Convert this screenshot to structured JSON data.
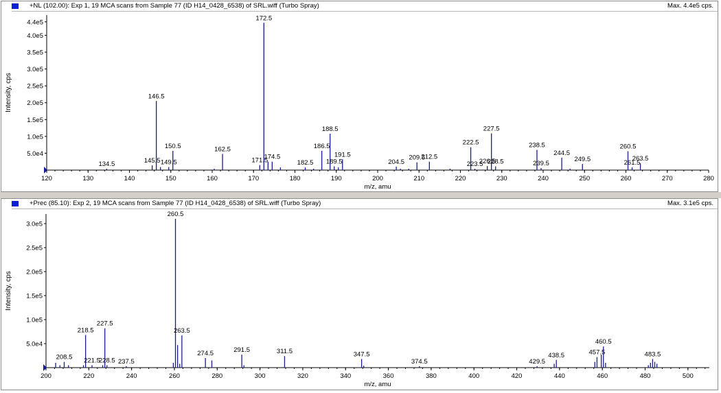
{
  "colors": {
    "peak": "#1c1c8c",
    "marker": "#0a1fd0",
    "axis": "#000000"
  },
  "chart_data": [
    {
      "type": "bar",
      "title": "+NL (102.00): Exp 1, 19 MCA scans from Sample 77 (ID H14_0428_6538) of SRL.wiff (Turbo Spray)",
      "max_label": "Max. 4.4e5 cps.",
      "xlabel": "m/z, amu",
      "ylabel": "Intensity, cps",
      "xlim": [
        120,
        280
      ],
      "ylim": [
        0,
        460000
      ],
      "xticks": [
        "120",
        "130",
        "140",
        "150",
        "160",
        "170",
        "180",
        "190",
        "200",
        "210",
        "220",
        "230",
        "240",
        "250",
        "260",
        "270",
        "280"
      ],
      "yticks": [
        {
          "value": 50000,
          "label": "5.0e4"
        },
        {
          "value": 100000,
          "label": "1.0e5"
        },
        {
          "value": 150000,
          "label": "1.5e5"
        },
        {
          "value": 200000,
          "label": "2.0e5"
        },
        {
          "value": 250000,
          "label": "2.5e5"
        },
        {
          "value": 300000,
          "label": "3.0e5"
        },
        {
          "value": 350000,
          "label": "3.5e5"
        },
        {
          "value": 400000,
          "label": "4.0e5"
        },
        {
          "value": 440000,
          "label": "4.4e5"
        }
      ],
      "peaks": [
        {
          "mz": 134.5,
          "intensity": 3000,
          "label": "134.5"
        },
        {
          "mz": 145.5,
          "intensity": 14000,
          "label": "145.5"
        },
        {
          "mz": 146.5,
          "intensity": 205000,
          "label": "146.5"
        },
        {
          "mz": 147.5,
          "intensity": 9000
        },
        {
          "mz": 149.5,
          "intensity": 9000,
          "label": "149.5"
        },
        {
          "mz": 150.5,
          "intensity": 57000,
          "label": "150.5"
        },
        {
          "mz": 160.5,
          "intensity": 3000
        },
        {
          "mz": 162.5,
          "intensity": 48000,
          "label": "162.5"
        },
        {
          "mz": 171.5,
          "intensity": 15000,
          "label": "171.5"
        },
        {
          "mz": 172.5,
          "intensity": 437000,
          "label": "172.5"
        },
        {
          "mz": 173.5,
          "intensity": 25000
        },
        {
          "mz": 174.5,
          "intensity": 25000,
          "label": "174.5"
        },
        {
          "mz": 176.5,
          "intensity": 8000
        },
        {
          "mz": 182.5,
          "intensity": 8000,
          "label": "182.5"
        },
        {
          "mz": 184.5,
          "intensity": 3000
        },
        {
          "mz": 186.5,
          "intensity": 57000,
          "label": "186.5"
        },
        {
          "mz": 188.5,
          "intensity": 108000,
          "label": "188.5"
        },
        {
          "mz": 189.5,
          "intensity": 11000,
          "label": "189.5"
        },
        {
          "mz": 190.5,
          "intensity": 8000
        },
        {
          "mz": 191.5,
          "intensity": 32000,
          "label": "191.5"
        },
        {
          "mz": 204.5,
          "intensity": 10000,
          "label": "204.5"
        },
        {
          "mz": 205.5,
          "intensity": 4000
        },
        {
          "mz": 207.5,
          "intensity": 3000
        },
        {
          "mz": 209.5,
          "intensity": 23000,
          "label": "209.5"
        },
        {
          "mz": 212.5,
          "intensity": 25000,
          "label": "212.5"
        },
        {
          "mz": 217.5,
          "intensity": 3000
        },
        {
          "mz": 222.5,
          "intensity": 68000,
          "label": "222.5"
        },
        {
          "mz": 223.5,
          "intensity": 4000,
          "label": "223.5"
        },
        {
          "mz": 226.5,
          "intensity": 12000,
          "label": "226.5"
        },
        {
          "mz": 227.5,
          "intensity": 109000,
          "label": "227.5"
        },
        {
          "mz": 228.5,
          "intensity": 11000,
          "label": "228.5"
        },
        {
          "mz": 238.5,
          "intensity": 60000,
          "label": "238.5"
        },
        {
          "mz": 239.5,
          "intensity": 6000,
          "label": "239.5"
        },
        {
          "mz": 244.5,
          "intensity": 37000,
          "label": "244.5"
        },
        {
          "mz": 246.5,
          "intensity": 4000
        },
        {
          "mz": 249.5,
          "intensity": 18000,
          "label": "249.5"
        },
        {
          "mz": 260.5,
          "intensity": 56000,
          "label": "260.5"
        },
        {
          "mz": 261.5,
          "intensity": 8000,
          "label": "261.5"
        },
        {
          "mz": 263.5,
          "intensity": 20000,
          "label": "263.5"
        }
      ]
    },
    {
      "type": "bar",
      "title": "+Prec (85.10): Exp 2, 19 MCA scans from Sample 77 (ID H14_0428_6538) of SRL.wiff (Turbo Spray)",
      "max_label": "Max. 3.1e5 cps.",
      "xlabel": "m/z, amu",
      "ylabel": "Intensity, cps",
      "xlim": [
        200,
        510
      ],
      "ylim": [
        0,
        320000
      ],
      "xticks": [
        "200",
        "220",
        "240",
        "260",
        "280",
        "300",
        "320",
        "340",
        "360",
        "380",
        "400",
        "420",
        "440",
        "460",
        "480",
        "500"
      ],
      "yticks": [
        {
          "value": 50000,
          "label": "5.0e4"
        },
        {
          "value": 100000,
          "label": "1.0e5"
        },
        {
          "value": 150000,
          "label": "1.5e5"
        },
        {
          "value": 200000,
          "label": "2.0e5"
        },
        {
          "value": 250000,
          "label": "2.5e5"
        },
        {
          "value": 300000,
          "label": "3.0e5"
        }
      ],
      "peaks": [
        {
          "mz": 204.5,
          "intensity": 10000
        },
        {
          "mz": 206.5,
          "intensity": 5000
        },
        {
          "mz": 208.5,
          "intensity": 12000,
          "label": "208.5"
        },
        {
          "mz": 210.5,
          "intensity": 5000
        },
        {
          "mz": 217.5,
          "intensity": 5000
        },
        {
          "mz": 218.5,
          "intensity": 68000,
          "label": "218.5"
        },
        {
          "mz": 221.5,
          "intensity": 5000,
          "label": "221.5"
        },
        {
          "mz": 226.5,
          "intensity": 5000
        },
        {
          "mz": 227.5,
          "intensity": 82000,
          "label": "227.5"
        },
        {
          "mz": 228.5,
          "intensity": 5000,
          "label": "228.5"
        },
        {
          "mz": 237.5,
          "intensity": 3000,
          "label": "237.5"
        },
        {
          "mz": 259.5,
          "intensity": 10000
        },
        {
          "mz": 260.5,
          "intensity": 310000,
          "label": "260.5"
        },
        {
          "mz": 261.5,
          "intensity": 47000
        },
        {
          "mz": 262.5,
          "intensity": 8000
        },
        {
          "mz": 263.5,
          "intensity": 67000,
          "label": "263.5"
        },
        {
          "mz": 274.5,
          "intensity": 20000,
          "label": "274.5"
        },
        {
          "mz": 277.5,
          "intensity": 15000
        },
        {
          "mz": 291.5,
          "intensity": 27000,
          "label": "291.5"
        },
        {
          "mz": 292.5,
          "intensity": 5000
        },
        {
          "mz": 311.5,
          "intensity": 24000,
          "label": "311.5"
        },
        {
          "mz": 347.5,
          "intensity": 18000,
          "label": "347.5"
        },
        {
          "mz": 348.5,
          "intensity": 4000
        },
        {
          "mz": 374.5,
          "intensity": 3000,
          "label": "374.5"
        },
        {
          "mz": 429.5,
          "intensity": 3000,
          "label": "429.5"
        },
        {
          "mz": 437.5,
          "intensity": 8000
        },
        {
          "mz": 438.5,
          "intensity": 16000,
          "label": "438.5"
        },
        {
          "mz": 456.5,
          "intensity": 12000
        },
        {
          "mz": 457.5,
          "intensity": 22000,
          "label": "457.5"
        },
        {
          "mz": 459.5,
          "intensity": 27000
        },
        {
          "mz": 460.5,
          "intensity": 44000,
          "label": "460.5"
        },
        {
          "mz": 461.5,
          "intensity": 10000
        },
        {
          "mz": 481.5,
          "intensity": 5000
        },
        {
          "mz": 482.5,
          "intensity": 10000
        },
        {
          "mz": 483.5,
          "intensity": 18000,
          "label": "483.5"
        },
        {
          "mz": 484.5,
          "intensity": 12000
        },
        {
          "mz": 485.5,
          "intensity": 8000
        }
      ]
    }
  ]
}
